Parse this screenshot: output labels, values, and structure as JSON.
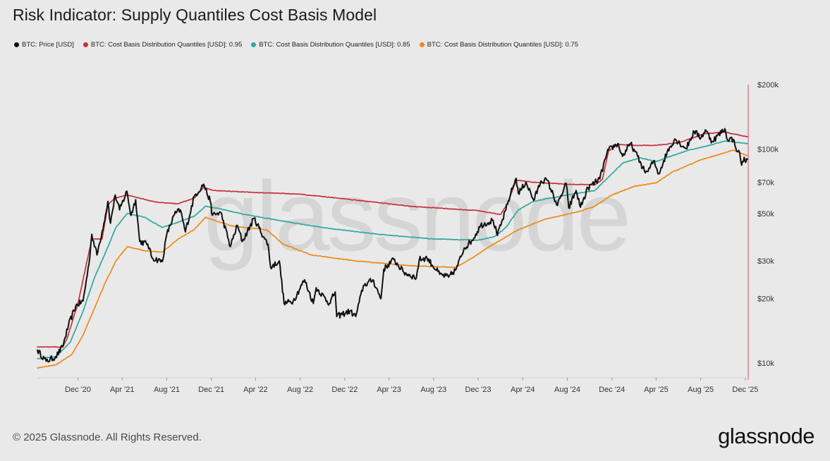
{
  "title": "Risk Indicator: Supply Quantiles Cost Basis Model",
  "footer": {
    "copyright": "© 2025 Glassnode. All Rights Reserved.",
    "brand": "glassnode"
  },
  "watermark": "glassnode",
  "colors": {
    "background": "#e9e9e9",
    "price": "#111111",
    "q95": "#c8303c",
    "q85": "#2fa99c",
    "q75": "#ee8a16",
    "axis_line": "#d9505a"
  },
  "chart_data": {
    "type": "line",
    "title": "Risk Indicator: Supply Quantiles Cost Basis Model",
    "xlabel": "",
    "ylabel": "",
    "y_scale": "log",
    "ylim": [
      8600,
      200000
    ],
    "xlim": [
      "2020-08-12",
      "2025-12-07"
    ],
    "y_axis_side": "right",
    "grid": false,
    "legend_position": "top-left",
    "y_ticks": [
      {
        "value": 10000,
        "label": "$10k"
      },
      {
        "value": 20000,
        "label": "$20k"
      },
      {
        "value": 30000,
        "label": "$30k"
      },
      {
        "value": 50000,
        "label": "$50k"
      },
      {
        "value": 70000,
        "label": "$70k"
      },
      {
        "value": 100000,
        "label": "$100k"
      },
      {
        "value": 200000,
        "label": "$200k"
      }
    ],
    "x_ticks": [
      {
        "date": "2020-12-01",
        "label": "Dec '20"
      },
      {
        "date": "2021-04-01",
        "label": "Apr '21"
      },
      {
        "date": "2021-08-01",
        "label": "Aug '21"
      },
      {
        "date": "2021-12-01",
        "label": "Dec '21"
      },
      {
        "date": "2022-04-01",
        "label": "Apr '22"
      },
      {
        "date": "2022-08-01",
        "label": "Aug '22"
      },
      {
        "date": "2022-12-01",
        "label": "Dec '22"
      },
      {
        "date": "2023-04-01",
        "label": "Apr '23"
      },
      {
        "date": "2023-08-01",
        "label": "Aug '23"
      },
      {
        "date": "2023-12-01",
        "label": "Dec '23"
      },
      {
        "date": "2024-04-01",
        "label": "Apr '24"
      },
      {
        "date": "2024-08-01",
        "label": "Aug '24"
      },
      {
        "date": "2024-12-01",
        "label": "Dec '24"
      },
      {
        "date": "2025-04-01",
        "label": "Apr '25"
      },
      {
        "date": "2025-08-01",
        "label": "Aug '25"
      },
      {
        "date": "2025-12-01",
        "label": "Dec '25"
      }
    ],
    "series": [
      {
        "name": "BTC: Price [USD]",
        "color": "#111111",
        "points": [
          [
            "2020-08-12",
            11500
          ],
          [
            "2020-09-05",
            10200
          ],
          [
            "2020-10-01",
            10700
          ],
          [
            "2020-10-20",
            11900
          ],
          [
            "2020-11-05",
            15000
          ],
          [
            "2020-11-25",
            18500
          ],
          [
            "2020-12-15",
            19500
          ],
          [
            "2020-12-31",
            29000
          ],
          [
            "2021-01-08",
            40000
          ],
          [
            "2021-01-22",
            32000
          ],
          [
            "2021-02-10",
            45000
          ],
          [
            "2021-02-21",
            57000
          ],
          [
            "2021-02-28",
            45000
          ],
          [
            "2021-03-13",
            61000
          ],
          [
            "2021-03-25",
            52000
          ],
          [
            "2021-04-14",
            63500
          ],
          [
            "2021-04-25",
            49000
          ],
          [
            "2021-05-08",
            58000
          ],
          [
            "2021-05-19",
            37000
          ],
          [
            "2021-06-10",
            36000
          ],
          [
            "2021-06-22",
            31000
          ],
          [
            "2021-07-20",
            29800
          ],
          [
            "2021-08-01",
            40000
          ],
          [
            "2021-08-22",
            49500
          ],
          [
            "2021-09-07",
            52000
          ],
          [
            "2021-09-21",
            41000
          ],
          [
            "2021-10-15",
            60000
          ],
          [
            "2021-11-10",
            68500
          ],
          [
            "2021-11-28",
            57000
          ],
          [
            "2021-12-04",
            49000
          ],
          [
            "2021-12-27",
            50500
          ],
          [
            "2022-01-22",
            35000
          ],
          [
            "2022-02-10",
            44000
          ],
          [
            "2022-02-24",
            37000
          ],
          [
            "2022-03-28",
            47500
          ],
          [
            "2022-04-26",
            38000
          ],
          [
            "2022-05-05",
            36000
          ],
          [
            "2022-05-12",
            28000
          ],
          [
            "2022-06-05",
            30000
          ],
          [
            "2022-06-18",
            19000
          ],
          [
            "2022-07-13",
            19500
          ],
          [
            "2022-08-13",
            24500
          ],
          [
            "2022-09-06",
            19000
          ],
          [
            "2022-09-14",
            22500
          ],
          [
            "2022-10-20",
            19000
          ],
          [
            "2022-11-05",
            21500
          ],
          [
            "2022-11-09",
            16500
          ],
          [
            "2022-12-15",
            17500
          ],
          [
            "2022-12-31",
            16500
          ],
          [
            "2023-01-21",
            23000
          ],
          [
            "2023-02-16",
            24500
          ],
          [
            "2023-03-10",
            20000
          ],
          [
            "2023-03-18",
            27500
          ],
          [
            "2023-04-14",
            30500
          ],
          [
            "2023-05-12",
            26500
          ],
          [
            "2023-06-15",
            25000
          ],
          [
            "2023-06-23",
            30500
          ],
          [
            "2023-07-14",
            31000
          ],
          [
            "2023-08-18",
            26000
          ],
          [
            "2023-09-11",
            25200
          ],
          [
            "2023-10-02",
            27500
          ],
          [
            "2023-10-24",
            34500
          ],
          [
            "2023-11-15",
            37500
          ],
          [
            "2023-12-08",
            44000
          ],
          [
            "2024-01-11",
            46500
          ],
          [
            "2024-01-23",
            39500
          ],
          [
            "2024-02-15",
            52000
          ],
          [
            "2024-02-28",
            62000
          ],
          [
            "2024-03-14",
            73000
          ],
          [
            "2024-03-20",
            62000
          ],
          [
            "2024-04-10",
            70000
          ],
          [
            "2024-05-01",
            57500
          ],
          [
            "2024-05-21",
            71000
          ],
          [
            "2024-06-07",
            71500
          ],
          [
            "2024-07-05",
            54500
          ],
          [
            "2024-07-29",
            69000
          ],
          [
            "2024-08-05",
            53000
          ],
          [
            "2024-08-25",
            64000
          ],
          [
            "2024-09-06",
            53500
          ],
          [
            "2024-09-27",
            66000
          ],
          [
            "2024-10-29",
            72500
          ],
          [
            "2024-11-13",
            90000
          ],
          [
            "2024-11-22",
            99000
          ],
          [
            "2024-12-17",
            106000
          ],
          [
            "2024-12-30",
            92500
          ],
          [
            "2025-01-21",
            106000
          ],
          [
            "2025-02-02",
            97500
          ],
          [
            "2025-02-28",
            79000
          ],
          [
            "2025-03-10",
            78500
          ],
          [
            "2025-03-25",
            88000
          ],
          [
            "2025-04-08",
            76500
          ],
          [
            "2025-05-01",
            96500
          ],
          [
            "2025-05-22",
            111500
          ],
          [
            "2025-06-22",
            100500
          ],
          [
            "2025-07-14",
            121000
          ],
          [
            "2025-08-02",
            113000
          ],
          [
            "2025-08-14",
            123000
          ],
          [
            "2025-09-01",
            108500
          ],
          [
            "2025-10-06",
            124500
          ],
          [
            "2025-10-11",
            112000
          ],
          [
            "2025-10-29",
            111000
          ],
          [
            "2025-11-05",
            101000
          ],
          [
            "2025-11-13",
            98500
          ],
          [
            "2025-11-21",
            84000
          ],
          [
            "2025-11-28",
            91500
          ],
          [
            "2025-12-02",
            86500
          ],
          [
            "2025-12-07",
            89500
          ]
        ]
      },
      {
        "name": "BTC: Cost Basis Distribution Quantiles [USD]: 0.95",
        "color": "#c8303c",
        "points": [
          [
            "2020-08-12",
            11900
          ],
          [
            "2020-10-20",
            11900
          ],
          [
            "2020-11-01",
            13000
          ],
          [
            "2020-12-01",
            19000
          ],
          [
            "2021-01-08",
            38000
          ],
          [
            "2021-02-05",
            38000
          ],
          [
            "2021-02-21",
            55000
          ],
          [
            "2021-03-13",
            59000
          ],
          [
            "2021-04-14",
            61000
          ],
          [
            "2021-05-19",
            59000
          ],
          [
            "2021-07-01",
            56500
          ],
          [
            "2021-09-01",
            55500
          ],
          [
            "2021-10-15",
            59000
          ],
          [
            "2021-11-10",
            66000
          ],
          [
            "2021-12-10",
            64000
          ],
          [
            "2022-03-01",
            63000
          ],
          [
            "2022-08-01",
            61500
          ],
          [
            "2022-12-01",
            58500
          ],
          [
            "2023-06-01",
            54000
          ],
          [
            "2023-12-01",
            51500
          ],
          [
            "2024-02-01",
            49500
          ],
          [
            "2024-02-20",
            56000
          ],
          [
            "2024-03-14",
            71500
          ],
          [
            "2024-05-01",
            70000
          ],
          [
            "2024-08-01",
            68500
          ],
          [
            "2024-10-15",
            68000
          ],
          [
            "2024-11-05",
            72000
          ],
          [
            "2024-11-22",
            98000
          ],
          [
            "2024-12-17",
            105000
          ],
          [
            "2025-02-01",
            104000
          ],
          [
            "2025-04-01",
            104000
          ],
          [
            "2025-06-01",
            107000
          ],
          [
            "2025-08-14",
            118000
          ],
          [
            "2025-10-06",
            120000
          ],
          [
            "2025-12-07",
            114000
          ]
        ]
      },
      {
        "name": "BTC: Cost Basis Distribution Quantiles [USD]: 0.85",
        "color": "#2fa99c",
        "points": [
          [
            "2020-08-12",
            10500
          ],
          [
            "2020-10-01",
            10700
          ],
          [
            "2020-11-10",
            12500
          ],
          [
            "2020-12-15",
            17500
          ],
          [
            "2021-01-15",
            25000
          ],
          [
            "2021-02-15",
            33000
          ],
          [
            "2021-03-15",
            43000
          ],
          [
            "2021-04-15",
            50000
          ],
          [
            "2021-06-01",
            48000
          ],
          [
            "2021-07-20",
            43000
          ],
          [
            "2021-09-01",
            45500
          ],
          [
            "2021-10-15",
            48500
          ],
          [
            "2021-11-15",
            54000
          ],
          [
            "2021-12-15",
            53000
          ],
          [
            "2022-03-01",
            49500
          ],
          [
            "2022-06-01",
            46500
          ],
          [
            "2022-10-01",
            43000
          ],
          [
            "2023-03-01",
            40000
          ],
          [
            "2023-08-01",
            38000
          ],
          [
            "2023-12-01",
            37500
          ],
          [
            "2024-01-15",
            39000
          ],
          [
            "2024-02-15",
            43000
          ],
          [
            "2024-03-20",
            52000
          ],
          [
            "2024-05-01",
            57000
          ],
          [
            "2024-08-01",
            61000
          ],
          [
            "2024-10-15",
            64000
          ],
          [
            "2024-11-22",
            74000
          ],
          [
            "2024-12-31",
            86000
          ],
          [
            "2025-02-15",
            91000
          ],
          [
            "2025-04-01",
            87500
          ],
          [
            "2025-05-15",
            93000
          ],
          [
            "2025-07-01",
            99000
          ],
          [
            "2025-08-14",
            103000
          ],
          [
            "2025-10-06",
            109000
          ],
          [
            "2025-12-07",
            106000
          ]
        ]
      },
      {
        "name": "BTC: Cost Basis Distribution Quantiles [USD]: 0.75",
        "color": "#ee8a16",
        "points": [
          [
            "2020-08-12",
            9500
          ],
          [
            "2020-10-01",
            9800
          ],
          [
            "2020-11-15",
            11000
          ],
          [
            "2020-12-15",
            13500
          ],
          [
            "2021-01-15",
            18000
          ],
          [
            "2021-02-15",
            24000
          ],
          [
            "2021-03-15",
            30000
          ],
          [
            "2021-04-15",
            35000
          ],
          [
            "2021-06-01",
            33500
          ],
          [
            "2021-07-20",
            33000
          ],
          [
            "2021-09-01",
            38000
          ],
          [
            "2021-10-15",
            42000
          ],
          [
            "2021-11-15",
            48000
          ],
          [
            "2021-12-15",
            46000
          ],
          [
            "2022-02-01",
            43500
          ],
          [
            "2022-05-01",
            42000
          ],
          [
            "2022-06-15",
            36000
          ],
          [
            "2022-09-01",
            32000
          ],
          [
            "2023-01-01",
            30000
          ],
          [
            "2023-06-01",
            28500
          ],
          [
            "2023-10-01",
            28000
          ],
          [
            "2023-11-15",
            31000
          ],
          [
            "2024-01-01",
            35000
          ],
          [
            "2024-03-20",
            42000
          ],
          [
            "2024-06-01",
            47000
          ],
          [
            "2024-09-01",
            51000
          ],
          [
            "2024-10-15",
            54000
          ],
          [
            "2024-12-01",
            61000
          ],
          [
            "2025-02-01",
            67000
          ],
          [
            "2025-04-01",
            69500
          ],
          [
            "2025-05-15",
            78000
          ],
          [
            "2025-08-01",
            89000
          ],
          [
            "2025-10-06",
            96000
          ],
          [
            "2025-10-29",
            99000
          ],
          [
            "2025-12-07",
            93000
          ]
        ]
      }
    ]
  }
}
